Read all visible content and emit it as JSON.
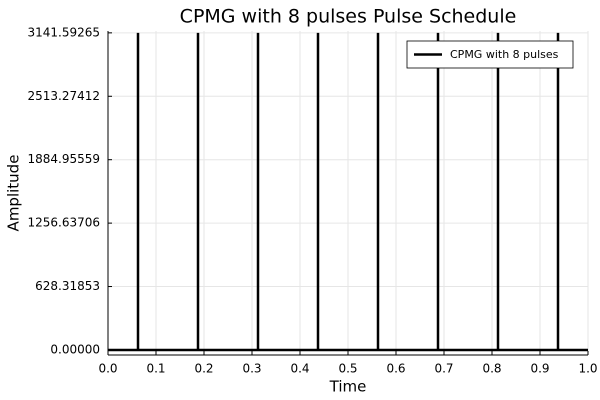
{
  "chart_data": {
    "type": "line",
    "title": "CPMG with 8 pulses Pulse Schedule",
    "xlabel": "Time",
    "ylabel": "Amplitude",
    "xlim": [
      0.0,
      1.0
    ],
    "ylim": [
      -50,
      3160
    ],
    "x_ticks": [
      "0.0",
      "0.1",
      "0.2",
      "0.3",
      "0.4",
      "0.5",
      "0.6",
      "0.7",
      "0.8",
      "0.9",
      "1.0"
    ],
    "x_tick_values": [
      0.0,
      0.1,
      0.2,
      0.3,
      0.4,
      0.5,
      0.6,
      0.7,
      0.8,
      0.9,
      1.0
    ],
    "y_ticks": [
      "0.00000",
      "628.31853",
      "1256.63706",
      "1884.95559",
      "2513.27412",
      "3141.59265"
    ],
    "y_tick_values": [
      0.0,
      628.31853,
      1256.63706,
      1884.95559,
      2513.27412,
      3141.59265
    ],
    "grid": true,
    "legend_position": "top-right",
    "series": [
      {
        "name": "CPMG with 8 pulses",
        "color": "#000000",
        "pulse_times": [
          0.0625,
          0.1875,
          0.3125,
          0.4375,
          0.5625,
          0.6875,
          0.8125,
          0.9375
        ],
        "pulse_amplitude": 3141.59265,
        "baseline": 0.0
      }
    ]
  }
}
